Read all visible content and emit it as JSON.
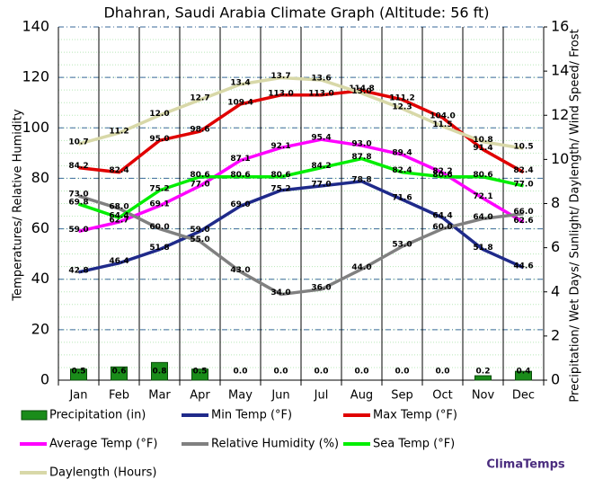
{
  "chart_data": {
    "type": "combo",
    "title": "Dhahran, Saudi Arabia Climate Graph (Altitude: 56 ft)",
    "y_label": "Temperatures/ Relative Humidity",
    "y2_label": "Precipitation/ Wet Days/ Sunlight/ Daylength/ Wind Speed/ Frost",
    "credit": "ClimaTemps",
    "categories": [
      "Jan",
      "Feb",
      "Mar",
      "Apr",
      "May",
      "Jun",
      "Jul",
      "Aug",
      "Sep",
      "Oct",
      "Nov",
      "Dec"
    ],
    "ylim": [
      0,
      140
    ],
    "yticks": [
      0,
      20,
      40,
      60,
      80,
      100,
      120,
      140
    ],
    "y2lim": [
      0,
      16
    ],
    "y2ticks": [
      0,
      2,
      4,
      6,
      8,
      10,
      12,
      14,
      16
    ],
    "grid": true,
    "series": [
      {
        "name": "Precipitation (in)",
        "type": "bar",
        "axis": "y2",
        "color": "#1a8c1a",
        "values": [
          0.5,
          0.6,
          0.8,
          0.5,
          0.0,
          0.0,
          0.0,
          0.0,
          0.0,
          0.0,
          0.2,
          0.4
        ],
        "value_labels": [
          "0.5",
          "0.6",
          "0.8",
          "0.5",
          "0.0",
          "0.0",
          "0.0",
          "0.0",
          "0.0",
          "0.0",
          "0.2",
          "0.4"
        ]
      },
      {
        "name": "Min Temp (°F)",
        "type": "line",
        "color": "#1f2a8a",
        "values": [
          42.8,
          46.4,
          51.8,
          59.0,
          69.0,
          75.2,
          77.0,
          78.8,
          71.6,
          64.4,
          51.8,
          44.6
        ],
        "value_labels": [
          "42.8",
          "46.4",
          "51.8",
          "59.0",
          "69.0",
          "75.2",
          "77.0",
          "78.8",
          "71.6",
          "64.4",
          "51.8",
          "44.6"
        ]
      },
      {
        "name": "Max Temp (°F)",
        "type": "line",
        "color": "#e00000",
        "values": [
          84.2,
          82.4,
          95.0,
          98.6,
          109.4,
          113.0,
          113.0,
          114.8,
          111.2,
          104.0,
          91.4,
          82.4
        ],
        "value_labels": [
          "84.2",
          "82.4",
          "95.0",
          "98.6",
          "109.4",
          "113.0",
          "113.0",
          "114.8",
          "111.2",
          "104.0",
          "91.4",
          "82.4"
        ]
      },
      {
        "name": "Average Temp (°F)",
        "type": "line",
        "color": "#ff00ff",
        "values": [
          59.0,
          62.7,
          69.1,
          77.0,
          87.1,
          92.1,
          95.4,
          93.0,
          89.4,
          82.2,
          72.1,
          62.6
        ],
        "value_labels": [
          "59.0",
          "62.7",
          "69.1",
          "77.0",
          "87.1",
          "92.1",
          "95.4",
          "93.0",
          "89.4",
          "82.2",
          "72.1",
          "62.6"
        ]
      },
      {
        "name": "Relative Humidity (%)",
        "type": "line",
        "color": "#808080",
        "values": [
          73.0,
          68.0,
          60.0,
          55.0,
          43.0,
          34.0,
          36.0,
          44.0,
          53.0,
          60.0,
          64.0,
          66.0
        ],
        "value_labels": [
          "73.0",
          "68.0",
          "60.0",
          "55.0",
          "43.0",
          "34.0",
          "36.0",
          "44.0",
          "53.0",
          "60.0",
          "64.0",
          "66.0"
        ]
      },
      {
        "name": "Sea Temp (°F)",
        "type": "line",
        "color": "#00ee00",
        "values": [
          69.8,
          64.4,
          75.2,
          80.6,
          80.6,
          80.6,
          84.2,
          87.8,
          82.4,
          80.6,
          80.6,
          77.0
        ],
        "value_labels": [
          "69.8",
          "64.4",
          "75.2",
          "80.6",
          "80.6",
          "80.6",
          "84.2",
          "87.8",
          "82.4",
          "80.6",
          "80.6",
          "77.0"
        ]
      },
      {
        "name": "Daylength (Hours)",
        "type": "line",
        "axis": "y2",
        "color": "#d8d8a8",
        "values": [
          10.7,
          11.2,
          12.0,
          12.7,
          13.4,
          13.7,
          13.6,
          13.0,
          12.3,
          11.5,
          10.8,
          10.5
        ],
        "value_labels": [
          "10.7",
          "11.2",
          "12.0",
          "12.7",
          "13.4",
          "13.7",
          "13.6",
          "13.0",
          "12.3",
          "11.5",
          "10.8",
          "10.5"
        ]
      }
    ]
  }
}
